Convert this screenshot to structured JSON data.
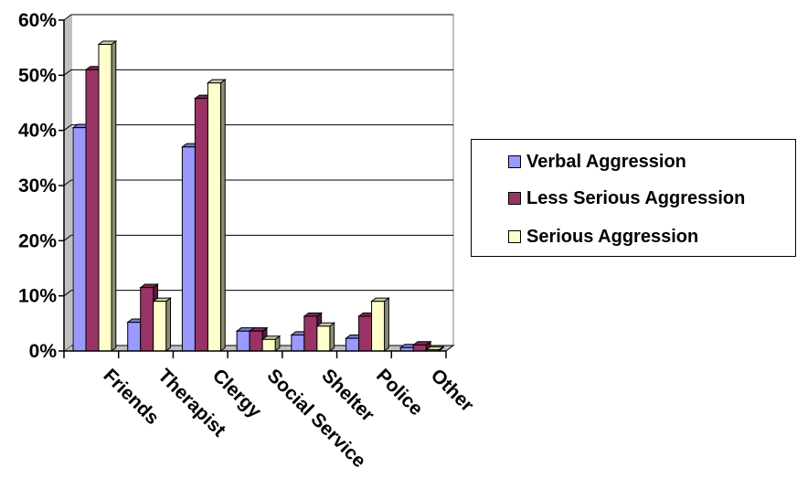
{
  "chart_data": {
    "type": "bar",
    "title": "",
    "xlabel": "",
    "ylabel": "",
    "ylim": [
      0,
      60
    ],
    "yticks": [
      "0%",
      "10%",
      "20%",
      "30%",
      "40%",
      "50%",
      "60%"
    ],
    "categories": [
      "Friends",
      "Therapist",
      "Clergy",
      "Social Service",
      "Shelter",
      "Police",
      "Other"
    ],
    "series": [
      {
        "name": "Verbal Aggression",
        "color": "#9999ff",
        "values": [
          40.5,
          5.2,
          37.0,
          3.6,
          2.9,
          2.3,
          0.6
        ]
      },
      {
        "name": "Less Serious Aggression",
        "color": "#993366",
        "values": [
          51.0,
          11.5,
          45.8,
          3.6,
          6.3,
          6.3,
          1.1
        ]
      },
      {
        "name": "Serious Aggression",
        "color": "#ffffcc",
        "values": [
          55.6,
          9.0,
          48.6,
          2.1,
          4.5,
          9.0,
          0.2
        ]
      }
    ],
    "grid": true,
    "legend_position": "right"
  }
}
